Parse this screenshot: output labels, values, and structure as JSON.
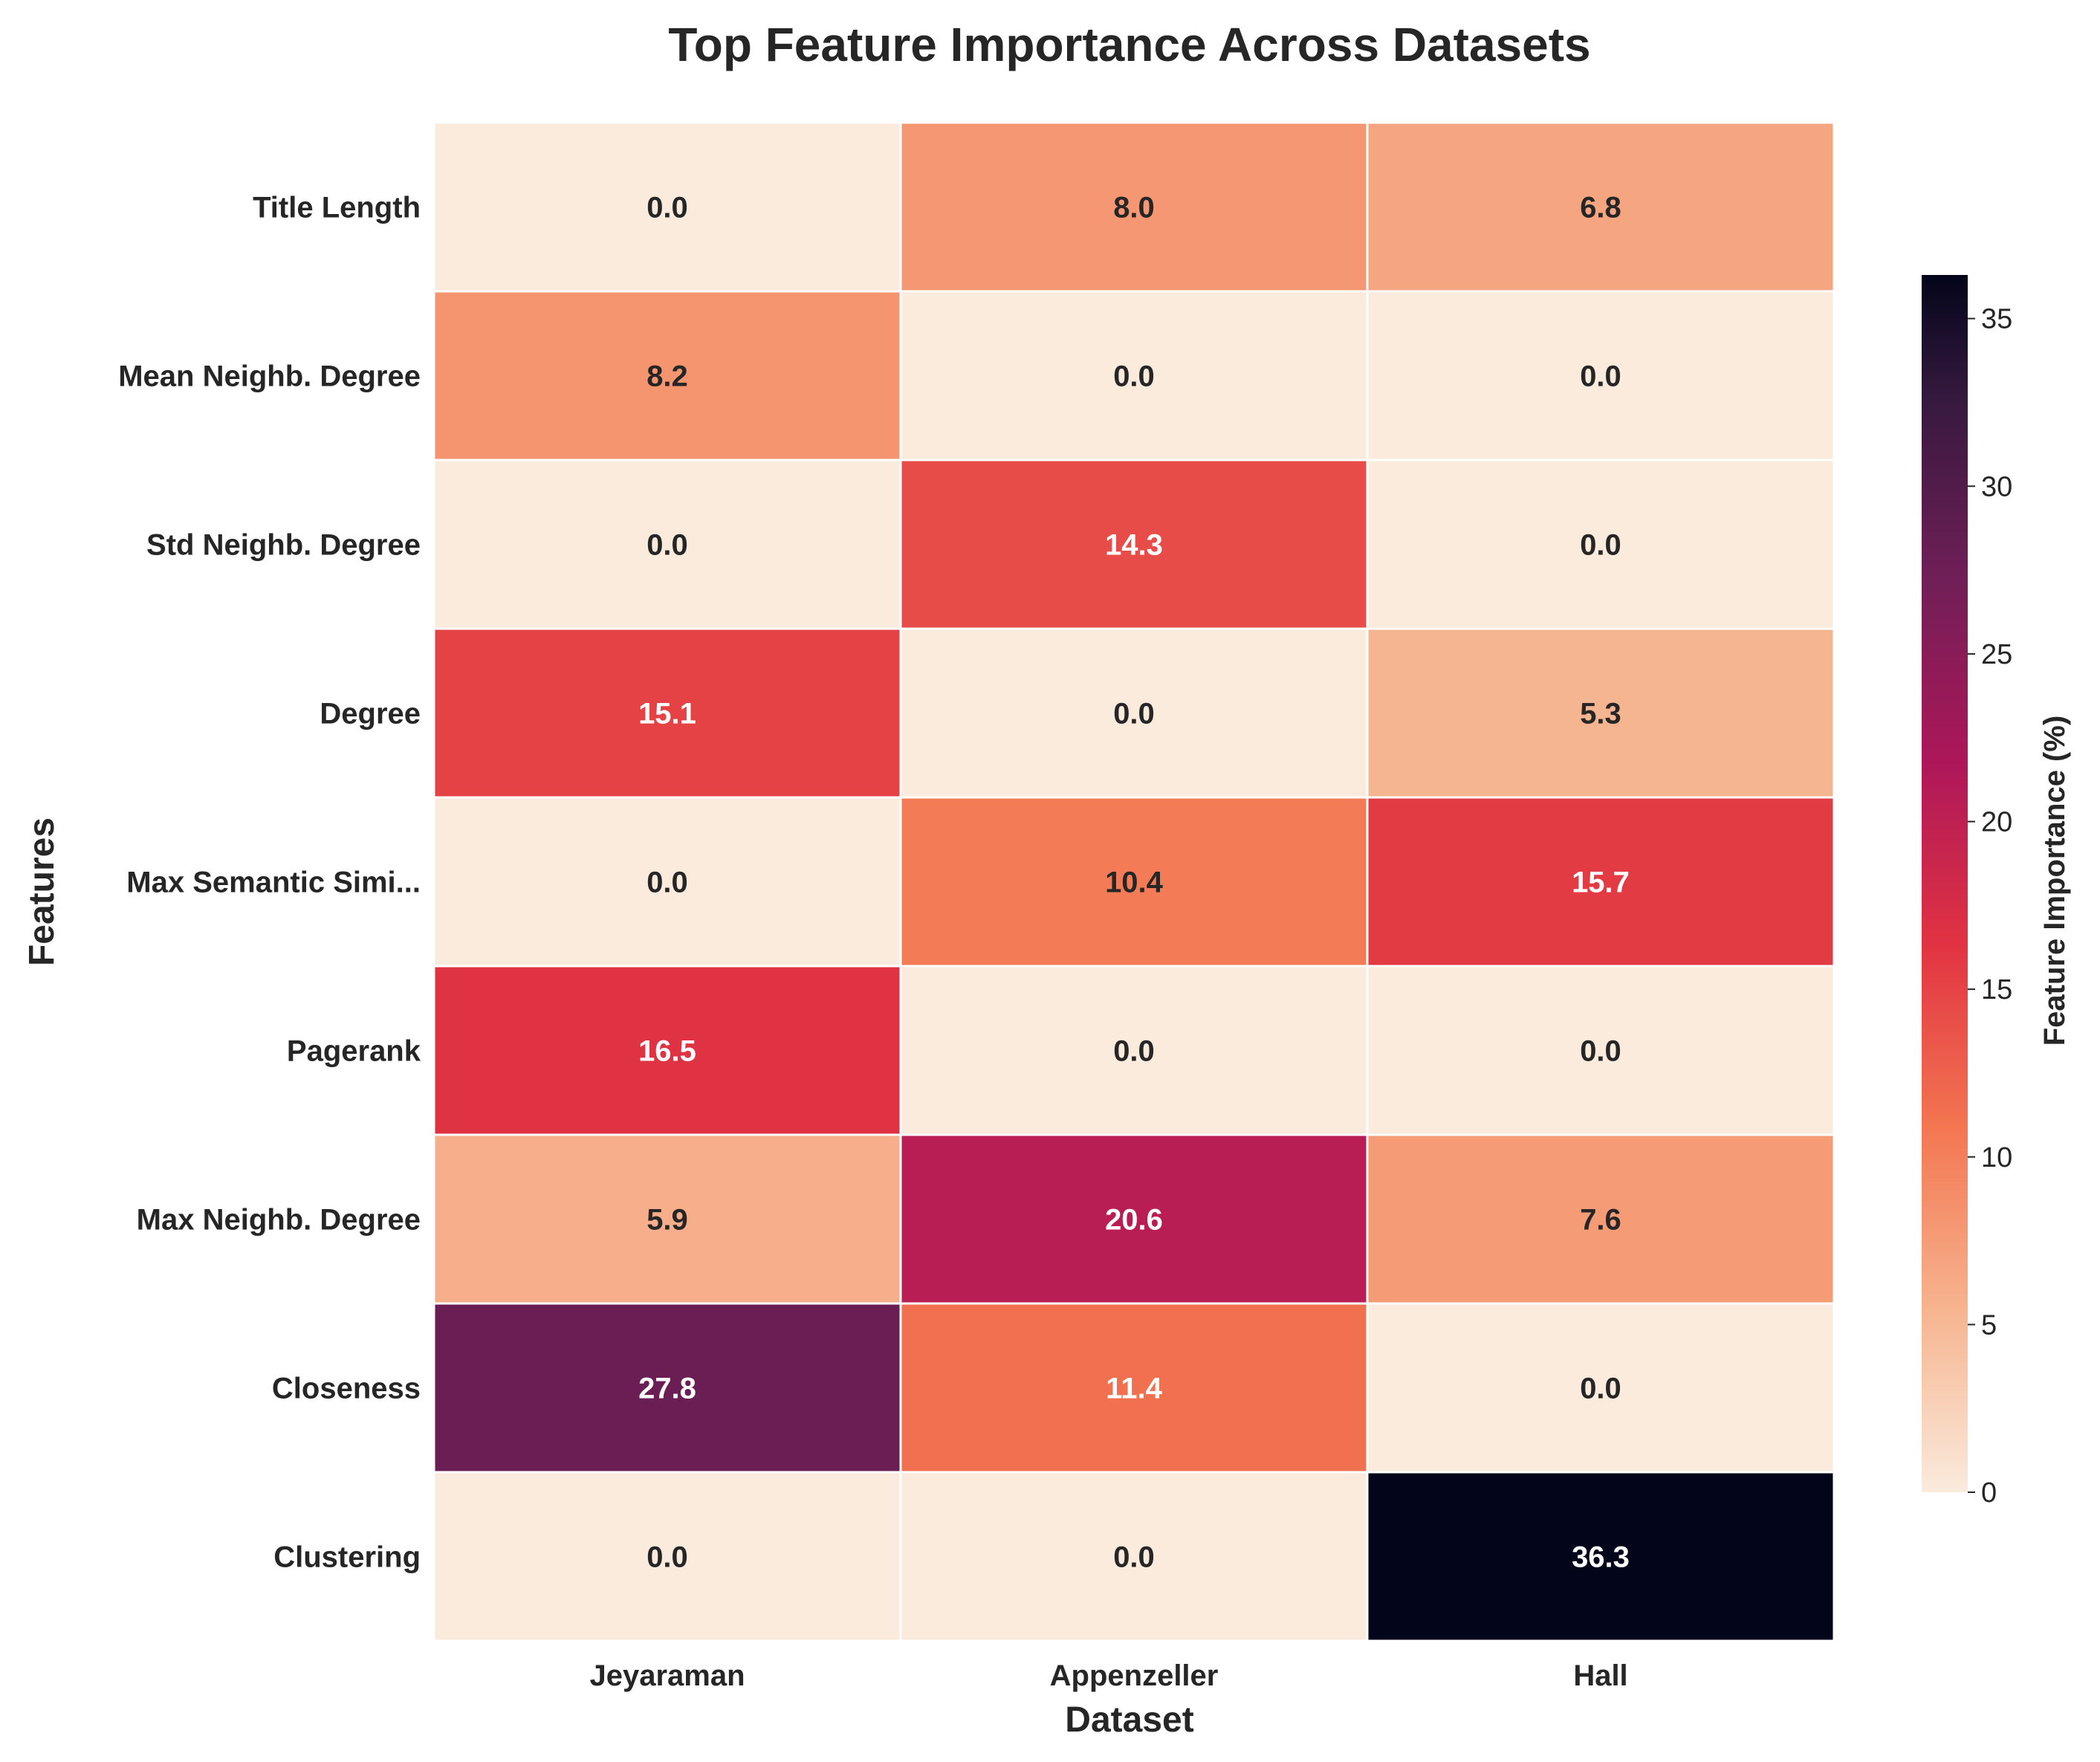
{
  "chart_data": {
    "type": "heatmap",
    "title": "Top Feature Importance Across Datasets",
    "xlabel": "Dataset",
    "ylabel": "Features",
    "x_categories": [
      "Jeyaraman",
      "Appenzeller",
      "Hall"
    ],
    "y_categories": [
      "Title Length",
      "Mean Neighb. Degree",
      "Std Neighb. Degree",
      "Degree",
      "Max Semantic Simi...",
      "Pagerank",
      "Max Neighb. Degree",
      "Closeness",
      "Clustering"
    ],
    "values": [
      [
        0.0,
        8.0,
        6.8
      ],
      [
        8.2,
        0.0,
        0.0
      ],
      [
        0.0,
        14.3,
        0.0
      ],
      [
        15.1,
        0.0,
        5.3
      ],
      [
        0.0,
        10.4,
        15.7
      ],
      [
        16.5,
        0.0,
        0.0
      ],
      [
        5.9,
        20.6,
        7.6
      ],
      [
        27.8,
        11.4,
        0.0
      ],
      [
        0.0,
        0.0,
        36.3
      ]
    ],
    "value_format": "0.0",
    "colorbar": {
      "label": "Feature Importance (%)",
      "range": [
        0,
        36.3
      ],
      "ticks": [
        0,
        5,
        10,
        15,
        20,
        25,
        30,
        35
      ],
      "colormap": "rocket_r"
    }
  }
}
